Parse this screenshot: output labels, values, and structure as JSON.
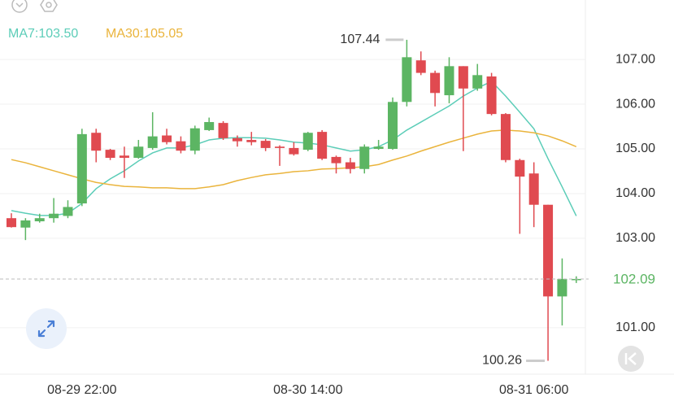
{
  "chart_data": {
    "type": "candlestick",
    "categories": [
      null,
      null,
      null,
      null,
      null,
      "08-29 22:00",
      null,
      null,
      null,
      null,
      null,
      null,
      null,
      null,
      null,
      null,
      null,
      null,
      null,
      null,
      null,
      "08-30 14:00",
      null,
      null,
      null,
      null,
      null,
      null,
      null,
      null,
      null,
      null,
      null,
      null,
      null,
      null,
      null,
      "08-31 06:00",
      null,
      null,
      null
    ],
    "open": [
      103.45,
      103.24,
      103.38,
      103.45,
      103.5,
      103.78,
      105.36,
      104.98,
      104.85,
      104.8,
      105.02,
      105.3,
      105.17,
      104.96,
      105.42,
      105.58,
      105.24,
      105.2,
      105.18,
      105.05,
      105.02,
      104.98,
      105.38,
      104.82,
      104.7,
      104.55,
      105.0,
      105.0,
      106.05,
      106.98,
      106.7,
      106.2,
      106.85,
      106.35,
      106.62,
      105.78,
      104.75,
      104.45,
      103.75,
      101.7,
      102.08
    ],
    "high": [
      103.56,
      103.45,
      103.55,
      103.9,
      103.85,
      105.45,
      105.45,
      105.0,
      105.05,
      105.2,
      105.82,
      105.45,
      105.28,
      105.52,
      105.7,
      105.62,
      105.3,
      105.38,
      105.22,
      105.08,
      105.15,
      105.38,
      105.42,
      104.85,
      104.8,
      105.1,
      105.2,
      106.15,
      107.44,
      107.18,
      106.75,
      107.05,
      106.85,
      106.9,
      106.7,
      105.8,
      104.78,
      104.7,
      103.75,
      102.55,
      102.15
    ],
    "low": [
      103.24,
      102.96,
      103.35,
      103.35,
      103.45,
      103.72,
      104.7,
      104.75,
      104.35,
      104.78,
      104.98,
      105.1,
      104.9,
      104.88,
      105.4,
      105.2,
      105.05,
      105.08,
      104.95,
      104.62,
      104.85,
      104.95,
      104.75,
      104.45,
      104.45,
      104.45,
      104.98,
      104.98,
      105.95,
      106.65,
      105.95,
      106.02,
      104.95,
      106.3,
      105.75,
      104.7,
      103.1,
      103.25,
      100.26,
      101.05,
      102.0
    ],
    "close": [
      103.25,
      103.4,
      103.45,
      103.55,
      103.7,
      105.33,
      104.96,
      104.8,
      104.8,
      105.05,
      105.28,
      105.15,
      104.96,
      105.46,
      105.6,
      105.24,
      105.17,
      105.15,
      105.02,
      105.02,
      104.88,
      105.36,
      104.78,
      104.68,
      104.55,
      105.05,
      105.05,
      106.05,
      107.05,
      106.7,
      106.25,
      106.85,
      106.35,
      106.65,
      105.78,
      104.75,
      104.38,
      103.75,
      101.7,
      102.09,
      102.09
    ],
    "up_color": "#5cb563",
    "down_color": "#e04a50",
    "series": [
      {
        "name": "MA7:103.50",
        "color": "#5ccdb8",
        "values": [
          103.62,
          103.56,
          103.51,
          103.51,
          103.56,
          103.78,
          104.11,
          104.33,
          104.51,
          104.73,
          104.91,
          105.02,
          105.02,
          105.09,
          105.2,
          105.24,
          105.25,
          105.25,
          105.24,
          105.2,
          105.15,
          105.13,
          105.09,
          105.02,
          104.95,
          104.98,
          105.05,
          105.2,
          105.42,
          105.6,
          105.78,
          105.96,
          106.18,
          106.36,
          106.51,
          106.18,
          105.82,
          105.45,
          104.78,
          104.15,
          103.5
        ]
      },
      {
        "name": "MA30:105.05",
        "color": "#eab43c",
        "values": [
          104.76,
          104.69,
          104.6,
          104.51,
          104.42,
          104.33,
          104.25,
          104.2,
          104.16,
          104.15,
          104.13,
          104.13,
          104.11,
          104.11,
          104.15,
          104.2,
          104.29,
          104.36,
          104.42,
          104.45,
          104.49,
          104.51,
          104.55,
          104.56,
          104.58,
          104.6,
          104.65,
          104.75,
          104.84,
          104.95,
          105.05,
          105.15,
          105.24,
          105.33,
          105.4,
          105.42,
          105.4,
          105.36,
          105.29,
          105.18,
          105.05
        ]
      }
    ],
    "ylim": [
      99.96,
      108.33
    ],
    "yticks": [
      {
        "value": 101,
        "label": "101.00"
      },
      {
        "value": 103,
        "label": "103.00"
      },
      {
        "value": 104,
        "label": "104.00"
      },
      {
        "value": 105,
        "label": "105.00"
      },
      {
        "value": 106,
        "label": "106.00"
      },
      {
        "value": 107,
        "label": "107.00"
      }
    ],
    "grid": true
  }
}
